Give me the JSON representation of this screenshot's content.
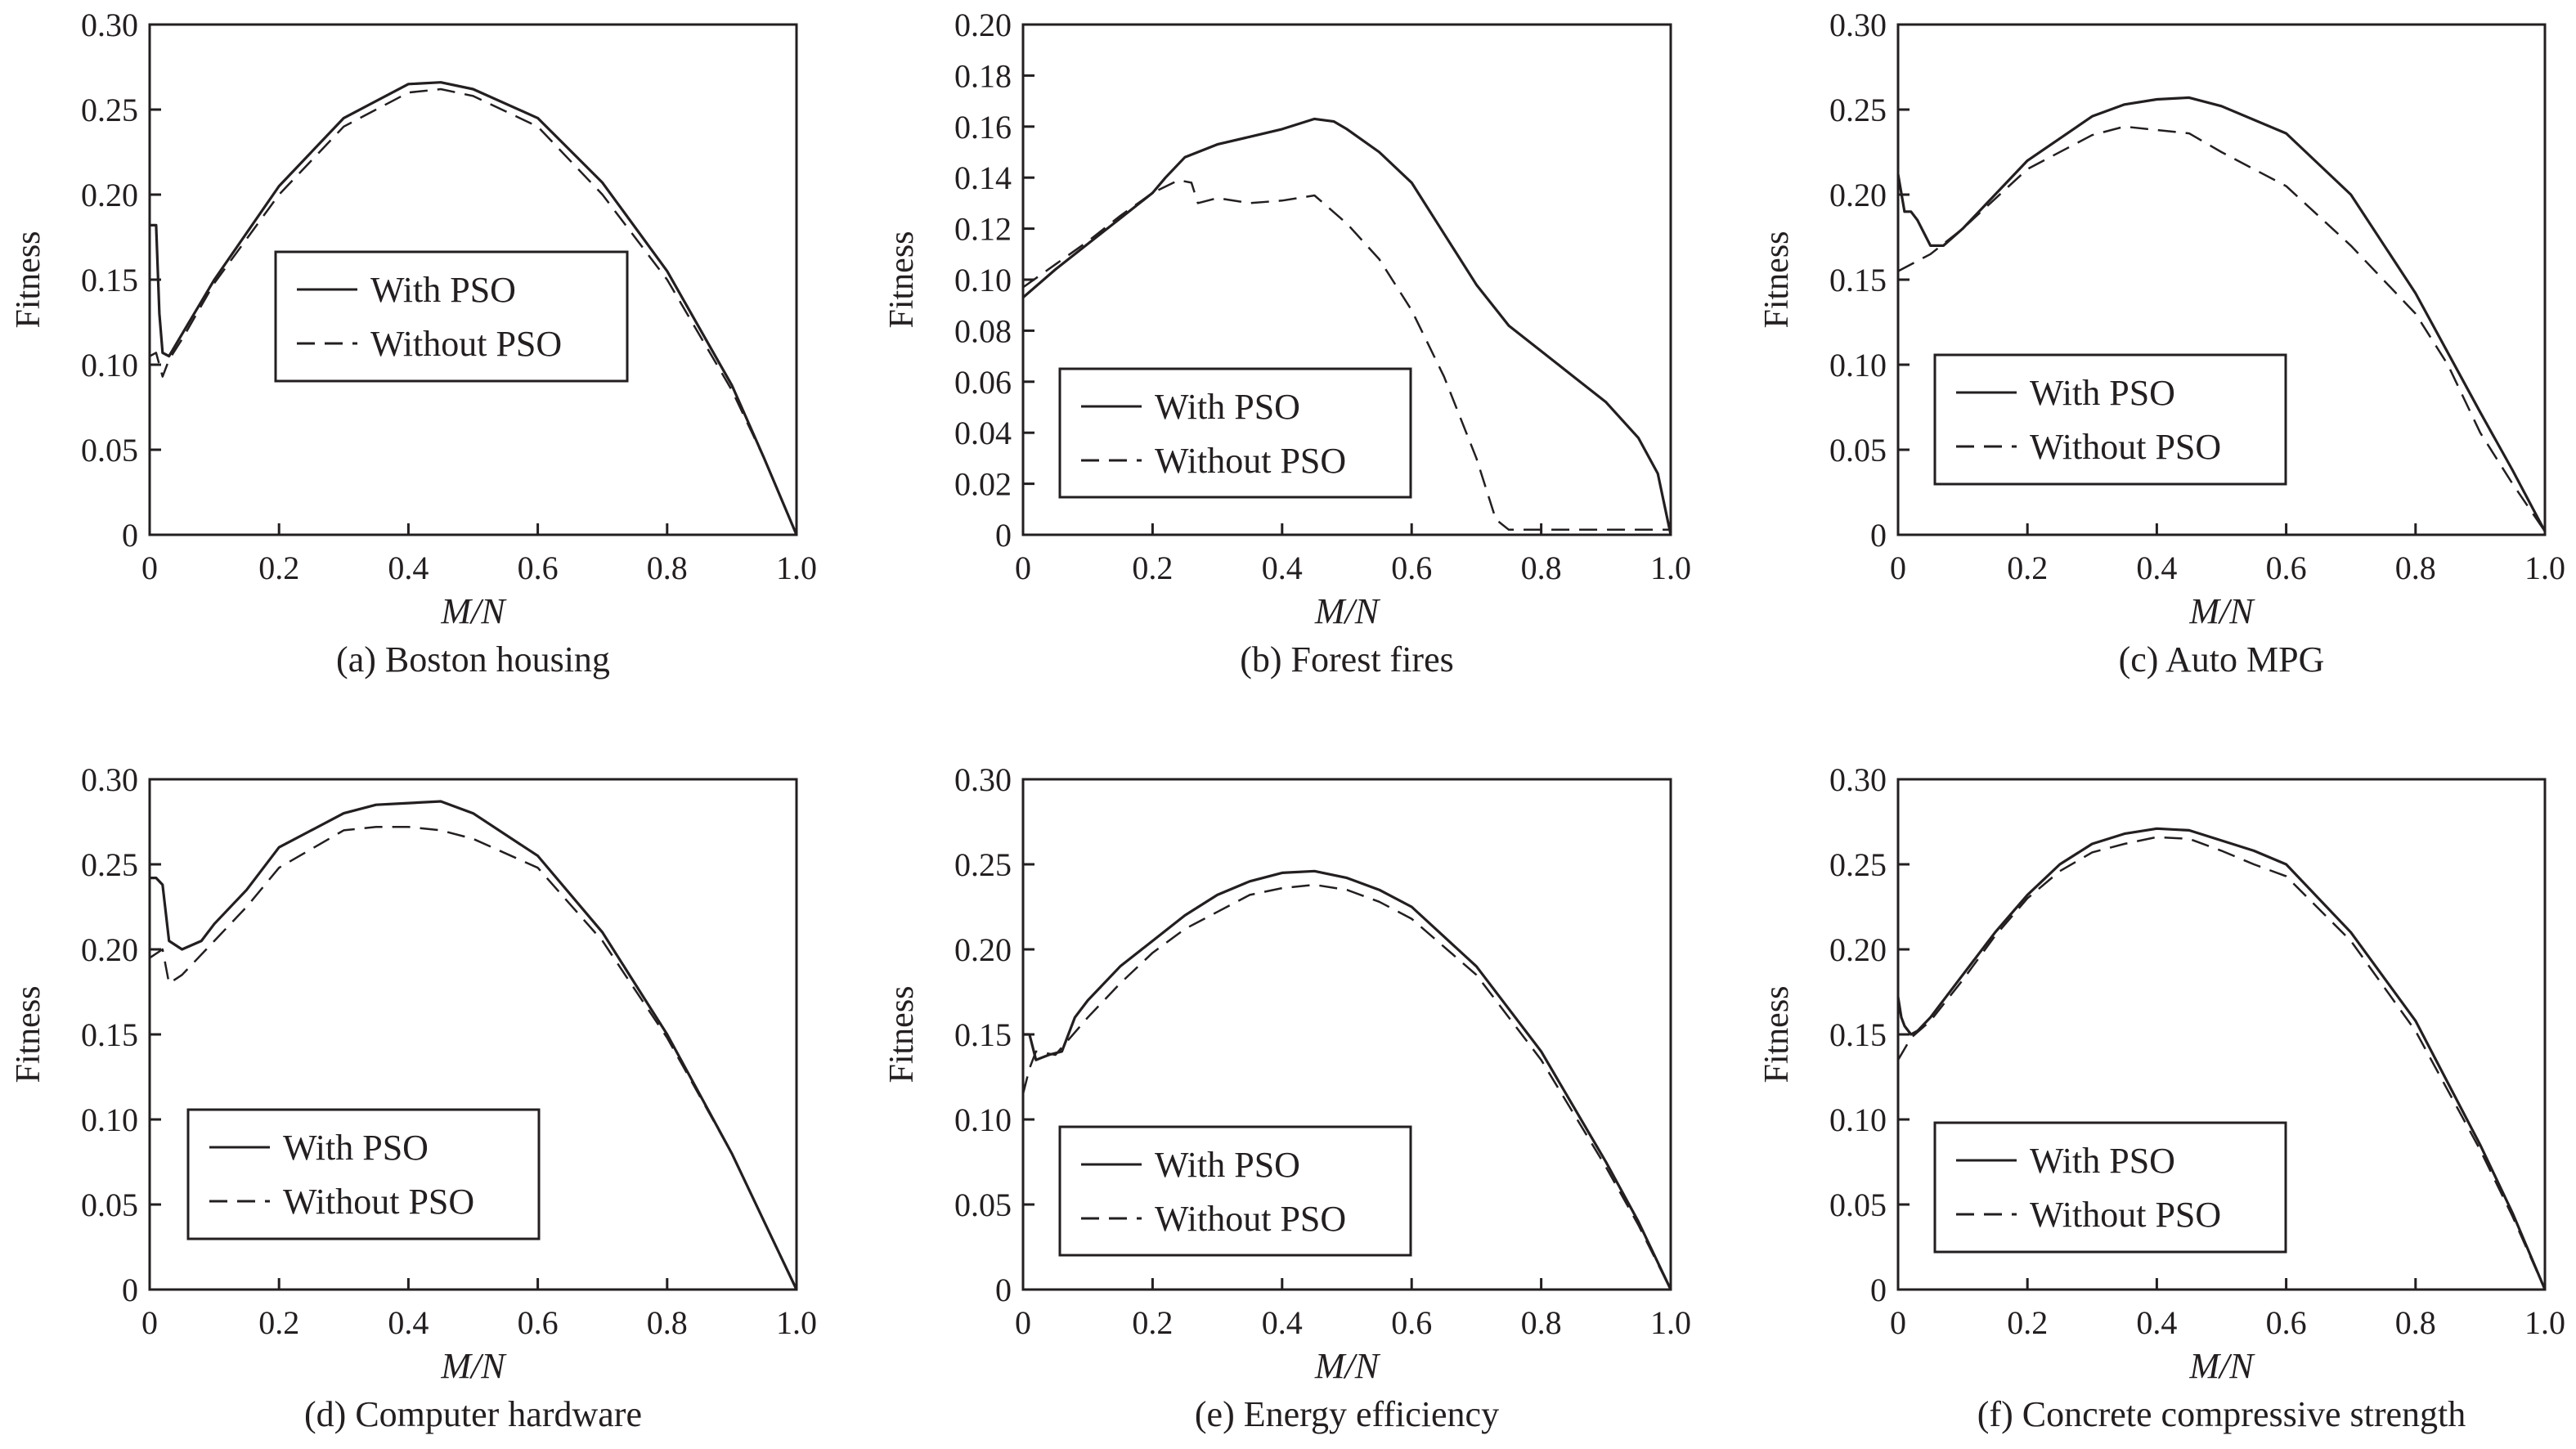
{
  "chart_data": [
    {
      "type": "line",
      "caption": "(a) Boston housing",
      "xlabel": "M/N",
      "ylabel": "Fitness",
      "xlim": [
        0,
        1.0
      ],
      "ylim": [
        0,
        0.3
      ],
      "xticks": [
        "0",
        "0.2",
        "0.4",
        "0.6",
        "0.8",
        "1.0"
      ],
      "yticks": [
        "0",
        "0.05",
        "0.10",
        "0.15",
        "0.20",
        "0.25",
        "0.30"
      ],
      "legend_position": "center-left",
      "series": [
        {
          "name": "With PSO",
          "style": "solid",
          "x": [
            0.0,
            0.01,
            0.015,
            0.02,
            0.03,
            0.05,
            0.1,
            0.2,
            0.3,
            0.4,
            0.45,
            0.5,
            0.6,
            0.7,
            0.8,
            0.9,
            0.95,
            1.0
          ],
          "y": [
            0.182,
            0.182,
            0.13,
            0.107,
            0.105,
            0.118,
            0.15,
            0.205,
            0.245,
            0.265,
            0.266,
            0.262,
            0.245,
            0.207,
            0.155,
            0.088,
            0.045,
            0.0
          ]
        },
        {
          "name": "Without PSO",
          "style": "dashed",
          "x": [
            0.0,
            0.01,
            0.02,
            0.03,
            0.05,
            0.1,
            0.2,
            0.3,
            0.4,
            0.45,
            0.5,
            0.6,
            0.7,
            0.8,
            0.9,
            0.95,
            1.0
          ],
          "y": [
            0.105,
            0.107,
            0.093,
            0.103,
            0.115,
            0.148,
            0.2,
            0.24,
            0.26,
            0.262,
            0.258,
            0.24,
            0.2,
            0.15,
            0.085,
            0.045,
            0.0
          ]
        }
      ]
    },
    {
      "type": "line",
      "caption": "(b) Forest fires",
      "xlabel": "M/N",
      "ylabel": "Fitness",
      "xlim": [
        0,
        1.0
      ],
      "ylim": [
        0,
        0.2
      ],
      "xticks": [
        "0",
        "0.2",
        "0.4",
        "0.6",
        "0.8",
        "1.0"
      ],
      "yticks": [
        "0",
        "0.02",
        "0.04",
        "0.06",
        "0.08",
        "0.10",
        "0.12",
        "0.14",
        "0.16",
        "0.18",
        "0.20"
      ],
      "legend_position": "bottom-left",
      "series": [
        {
          "name": "With PSO",
          "style": "solid",
          "x": [
            0.0,
            0.05,
            0.1,
            0.15,
            0.2,
            0.22,
            0.25,
            0.3,
            0.35,
            0.4,
            0.45,
            0.48,
            0.5,
            0.55,
            0.6,
            0.65,
            0.7,
            0.75,
            0.8,
            0.85,
            0.9,
            0.95,
            0.98,
            1.0
          ],
          "y": [
            0.093,
            0.104,
            0.114,
            0.124,
            0.134,
            0.14,
            0.148,
            0.153,
            0.156,
            0.159,
            0.163,
            0.162,
            0.159,
            0.15,
            0.138,
            0.118,
            0.098,
            0.082,
            0.072,
            0.062,
            0.052,
            0.038,
            0.024,
            0.0
          ]
        },
        {
          "name": "Without PSO",
          "style": "dashed",
          "x": [
            0.0,
            0.05,
            0.1,
            0.15,
            0.2,
            0.24,
            0.26,
            0.27,
            0.3,
            0.35,
            0.4,
            0.45,
            0.5,
            0.55,
            0.6,
            0.65,
            0.7,
            0.73,
            0.75,
            0.8,
            0.9,
            1.0
          ],
          "y": [
            0.097,
            0.106,
            0.115,
            0.125,
            0.134,
            0.139,
            0.138,
            0.13,
            0.132,
            0.13,
            0.131,
            0.133,
            0.122,
            0.108,
            0.088,
            0.062,
            0.03,
            0.006,
            0.002,
            0.002,
            0.002,
            0.002
          ]
        }
      ]
    },
    {
      "type": "line",
      "caption": "(c) Auto MPG",
      "xlabel": "M/N",
      "ylabel": "Fitness",
      "xlim": [
        0,
        1.0
      ],
      "ylim": [
        0,
        0.3
      ],
      "xticks": [
        "0",
        "0.2",
        "0.4",
        "0.6",
        "0.8",
        "1.0"
      ],
      "yticks": [
        "0",
        "0.05",
        "0.10",
        "0.15",
        "0.20",
        "0.25",
        "0.30"
      ],
      "legend_position": "bottom-left",
      "series": [
        {
          "name": "With PSO",
          "style": "solid",
          "x": [
            0.0,
            0.01,
            0.02,
            0.03,
            0.05,
            0.07,
            0.1,
            0.2,
            0.3,
            0.35,
            0.4,
            0.45,
            0.5,
            0.6,
            0.7,
            0.8,
            0.9,
            0.95,
            1.0
          ],
          "y": [
            0.212,
            0.19,
            0.19,
            0.185,
            0.17,
            0.17,
            0.18,
            0.22,
            0.246,
            0.253,
            0.256,
            0.257,
            0.252,
            0.236,
            0.2,
            0.142,
            0.072,
            0.038,
            0.002
          ]
        },
        {
          "name": "Without PSO",
          "style": "dashed",
          "x": [
            0.0,
            0.05,
            0.1,
            0.2,
            0.3,
            0.35,
            0.4,
            0.45,
            0.5,
            0.6,
            0.7,
            0.8,
            0.85,
            0.9,
            0.95,
            1.0
          ],
          "y": [
            0.155,
            0.165,
            0.18,
            0.215,
            0.235,
            0.24,
            0.238,
            0.236,
            0.225,
            0.205,
            0.17,
            0.13,
            0.1,
            0.06,
            0.03,
            0.002
          ]
        }
      ]
    },
    {
      "type": "line",
      "caption": "(d) Computer hardware",
      "xlabel": "M/N",
      "ylabel": "Fitness",
      "xlim": [
        0,
        1.0
      ],
      "ylim": [
        0,
        0.3
      ],
      "xticks": [
        "0",
        "0.2",
        "0.4",
        "0.6",
        "0.8",
        "1.0"
      ],
      "yticks": [
        "0",
        "0.05",
        "0.10",
        "0.15",
        "0.20",
        "0.25",
        "0.30"
      ],
      "legend_position": "bottom-left",
      "series": [
        {
          "name": "With PSO",
          "style": "solid",
          "x": [
            0.0,
            0.01,
            0.02,
            0.03,
            0.05,
            0.08,
            0.1,
            0.15,
            0.2,
            0.3,
            0.35,
            0.4,
            0.45,
            0.5,
            0.6,
            0.7,
            0.8,
            0.9,
            0.95,
            1.0
          ],
          "y": [
            0.242,
            0.242,
            0.238,
            0.205,
            0.2,
            0.205,
            0.215,
            0.235,
            0.26,
            0.28,
            0.285,
            0.286,
            0.287,
            0.28,
            0.255,
            0.21,
            0.15,
            0.08,
            0.04,
            0.0
          ]
        },
        {
          "name": "Without PSO",
          "style": "dashed",
          "x": [
            0.0,
            0.02,
            0.03,
            0.05,
            0.1,
            0.15,
            0.2,
            0.3,
            0.35,
            0.4,
            0.45,
            0.5,
            0.6,
            0.7,
            0.8,
            0.9,
            0.95,
            1.0
          ],
          "y": [
            0.195,
            0.2,
            0.18,
            0.185,
            0.205,
            0.225,
            0.248,
            0.27,
            0.272,
            0.272,
            0.27,
            0.265,
            0.248,
            0.205,
            0.148,
            0.08,
            0.04,
            0.0
          ]
        }
      ]
    },
    {
      "type": "line",
      "caption": "(e) Energy efficiency",
      "xlabel": "M/N",
      "ylabel": "Fitness",
      "xlim": [
        0,
        1.0
      ],
      "ylim": [
        0,
        0.3
      ],
      "xticks": [
        "0",
        "0.2",
        "0.4",
        "0.6",
        "0.8",
        "1.0"
      ],
      "yticks": [
        "0",
        "0.05",
        "0.10",
        "0.15",
        "0.20",
        "0.25",
        "0.30"
      ],
      "legend_position": "bottom-left",
      "series": [
        {
          "name": "With PSO",
          "style": "solid",
          "x": [
            0.0,
            0.01,
            0.02,
            0.04,
            0.06,
            0.08,
            0.1,
            0.15,
            0.2,
            0.25,
            0.3,
            0.35,
            0.4,
            0.45,
            0.5,
            0.55,
            0.6,
            0.7,
            0.8,
            0.9,
            0.95,
            1.0
          ],
          "y": [
            0.15,
            0.15,
            0.135,
            0.138,
            0.14,
            0.16,
            0.17,
            0.19,
            0.205,
            0.22,
            0.232,
            0.24,
            0.245,
            0.246,
            0.242,
            0.235,
            0.225,
            0.19,
            0.14,
            0.075,
            0.04,
            0.0
          ]
        },
        {
          "name": "Without PSO",
          "style": "dashed",
          "x": [
            0.0,
            0.01,
            0.02,
            0.05,
            0.1,
            0.15,
            0.2,
            0.25,
            0.3,
            0.35,
            0.4,
            0.45,
            0.5,
            0.55,
            0.6,
            0.7,
            0.8,
            0.9,
            0.95,
            1.0
          ],
          "y": [
            0.115,
            0.13,
            0.14,
            0.138,
            0.16,
            0.18,
            0.198,
            0.212,
            0.222,
            0.232,
            0.236,
            0.238,
            0.235,
            0.228,
            0.218,
            0.185,
            0.135,
            0.072,
            0.038,
            0.0
          ]
        }
      ]
    },
    {
      "type": "line",
      "caption": "(f) Concrete compressive strength",
      "xlabel": "M/N",
      "ylabel": "Fitness",
      "xlim": [
        0,
        1.0
      ],
      "ylim": [
        0,
        0.3
      ],
      "xticks": [
        "0",
        "0.2",
        "0.4",
        "0.6",
        "0.8",
        "1.0"
      ],
      "yticks": [
        "0",
        "0.05",
        "0.10",
        "0.15",
        "0.20",
        "0.25",
        "0.30"
      ],
      "legend_position": "bottom-left",
      "series": [
        {
          "name": "With PSO",
          "style": "solid",
          "x": [
            0.0,
            0.005,
            0.01,
            0.02,
            0.03,
            0.05,
            0.1,
            0.15,
            0.2,
            0.25,
            0.3,
            0.35,
            0.4,
            0.45,
            0.5,
            0.55,
            0.6,
            0.7,
            0.8,
            0.9,
            0.95,
            1.0
          ],
          "y": [
            0.172,
            0.16,
            0.155,
            0.15,
            0.152,
            0.16,
            0.185,
            0.21,
            0.232,
            0.25,
            0.262,
            0.268,
            0.271,
            0.27,
            0.264,
            0.258,
            0.25,
            0.21,
            0.158,
            0.085,
            0.045,
            0.0
          ]
        },
        {
          "name": "Without PSO",
          "style": "dashed",
          "x": [
            0.0,
            0.02,
            0.05,
            0.1,
            0.15,
            0.2,
            0.25,
            0.3,
            0.35,
            0.4,
            0.45,
            0.5,
            0.55,
            0.6,
            0.7,
            0.8,
            0.9,
            0.95,
            1.0
          ],
          "y": [
            0.135,
            0.148,
            0.158,
            0.182,
            0.208,
            0.23,
            0.246,
            0.257,
            0.262,
            0.266,
            0.265,
            0.258,
            0.25,
            0.243,
            0.205,
            0.152,
            0.082,
            0.043,
            0.0
          ]
        }
      ]
    }
  ]
}
